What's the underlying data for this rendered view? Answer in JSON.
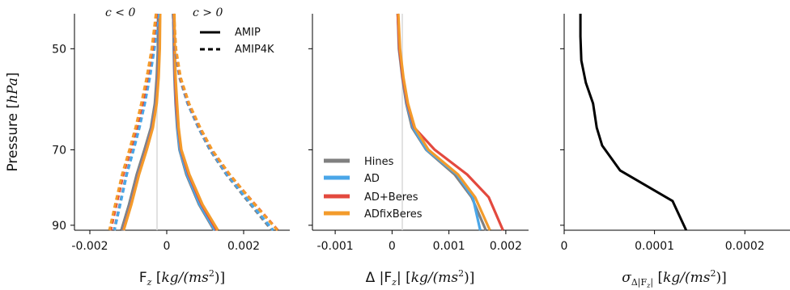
{
  "chart_data": [
    {
      "type": "line",
      "ylabel": "Pressure [hPa]",
      "xlabel": "Fz [kg/(ms2)]",
      "xlim": [
        -0.0024,
        0.0032
      ],
      "ylim": [
        91.5,
        44.5
      ],
      "yscale": "log",
      "xticks": [
        "-0.002",
        "0",
        "0.002"
      ],
      "xtick_values": [
        -0.002,
        0,
        0.002
      ],
      "yticks": [
        "50",
        "70",
        "90"
      ],
      "ytick_values": [
        50,
        70,
        90
      ],
      "annotations": [
        "c < 0",
        "c > 0"
      ],
      "legend": {
        "placement": "top-right",
        "entries": [
          {
            "label": "AMIP",
            "style": "solid"
          },
          {
            "label": "AMIP4K",
            "style": "dashed"
          }
        ]
      },
      "series": [
        {
          "scheme": "Hines",
          "pos": false,
          "dashed": false,
          "x": [
            -0.00022,
            -0.00023,
            -0.00026,
            -0.00031,
            -0.00041,
            -0.00058,
            -0.00078,
            -0.00098,
            -0.00118
          ],
          "y": [
            44.5,
            50,
            55,
            60,
            65,
            70,
            76,
            84,
            91.5
          ]
        },
        {
          "scheme": "AD",
          "pos": false,
          "dashed": false,
          "x": [
            -0.00019,
            -0.0002,
            -0.00023,
            -0.00028,
            -0.00038,
            -0.00054,
            -0.00074,
            -0.00094,
            -0.00114
          ],
          "y": [
            44.5,
            50,
            55,
            60,
            65,
            70,
            76,
            84,
            91.5
          ]
        },
        {
          "scheme": "AD+Beres",
          "pos": false,
          "dashed": false,
          "x": [
            -0.00018,
            -0.00019,
            -0.00022,
            -0.00027,
            -0.00037,
            -0.00053,
            -0.00073,
            -0.00093,
            -0.00113
          ],
          "y": [
            44.5,
            50,
            55,
            60,
            65,
            70,
            76,
            84,
            91.5
          ]
        },
        {
          "scheme": "ADfixBeres",
          "pos": false,
          "dashed": false,
          "x": [
            -0.00017,
            -0.00018,
            -0.00021,
            -0.00026,
            -0.00036,
            -0.00052,
            -0.00072,
            -0.00092,
            -0.00112
          ],
          "y": [
            44.5,
            50,
            55,
            60,
            65,
            70,
            76,
            84,
            91.5
          ]
        },
        {
          "scheme": "Hines",
          "pos": true,
          "dashed": false,
          "x": [
            0.00017,
            0.00018,
            0.0002,
            0.00023,
            0.00027,
            0.00033,
            0.00051,
            0.00084,
            0.00123
          ],
          "y": [
            44.5,
            50,
            55,
            60,
            65,
            70,
            76,
            84,
            91.5
          ]
        },
        {
          "scheme": "AD",
          "pos": true,
          "dashed": false,
          "x": [
            0.00018,
            0.00019,
            0.00021,
            0.00024,
            0.00028,
            0.00034,
            0.00053,
            0.00086,
            0.00125
          ],
          "y": [
            44.5,
            50,
            55,
            60,
            65,
            70,
            76,
            84,
            91.5
          ]
        },
        {
          "scheme": "AD+Beres",
          "pos": true,
          "dashed": false,
          "x": [
            0.00019,
            0.0002,
            0.00022,
            0.00025,
            0.0003,
            0.00037,
            0.00057,
            0.00091,
            0.0013
          ],
          "y": [
            44.5,
            50,
            55,
            60,
            65,
            70,
            76,
            84,
            91.5
          ]
        },
        {
          "scheme": "ADfixBeres",
          "pos": true,
          "dashed": false,
          "x": [
            0.0002,
            0.00021,
            0.00023,
            0.00027,
            0.00031,
            0.00038,
            0.00059,
            0.00093,
            0.00133
          ],
          "y": [
            44.5,
            50,
            55,
            60,
            65,
            70,
            76,
            84,
            91.5
          ]
        },
        {
          "scheme": "Hines",
          "pos": false,
          "dashed": true,
          "x": [
            -0.00024,
            -0.00034,
            -0.00046,
            -0.00058,
            -0.00072,
            -0.00087,
            -0.00105,
            -0.00122,
            -0.00137
          ],
          "y": [
            44.5,
            50,
            55,
            60,
            65,
            70,
            76,
            84,
            91.5
          ]
        },
        {
          "scheme": "AD",
          "pos": false,
          "dashed": true,
          "x": [
            -0.00022,
            -0.00032,
            -0.00044,
            -0.00057,
            -0.00071,
            -0.00086,
            -0.00104,
            -0.00121,
            -0.00136
          ],
          "y": [
            44.5,
            50,
            55,
            60,
            65,
            70,
            76,
            84,
            91.5
          ]
        },
        {
          "scheme": "AD+Beres",
          "pos": false,
          "dashed": true,
          "x": [
            -0.00026,
            -0.00037,
            -0.0005,
            -0.00063,
            -0.00078,
            -0.00094,
            -0.00113,
            -0.00131,
            -0.00146
          ],
          "y": [
            44.5,
            50,
            55,
            60,
            65,
            70,
            76,
            84,
            91.5
          ]
        },
        {
          "scheme": "ADfixBeres",
          "pos": false,
          "dashed": true,
          "x": [
            -0.00028,
            -0.00039,
            -0.00052,
            -0.00066,
            -0.00081,
            -0.00097,
            -0.00116,
            -0.00134,
            -0.00149
          ],
          "y": [
            44.5,
            50,
            55,
            60,
            65,
            70,
            76,
            84,
            91.5
          ]
        },
        {
          "scheme": "Hines",
          "pos": true,
          "dashed": true,
          "x": [
            0.00016,
            0.00021,
            0.00033,
            0.00054,
            0.00082,
            0.00112,
            0.00155,
            0.00218,
            0.00273
          ],
          "y": [
            44.5,
            50,
            55,
            60,
            65,
            70,
            76,
            84,
            91.5
          ]
        },
        {
          "scheme": "AD",
          "pos": true,
          "dashed": true,
          "x": [
            0.00017,
            0.00022,
            0.00034,
            0.00055,
            0.00083,
            0.00114,
            0.00157,
            0.00221,
            0.00277
          ],
          "y": [
            44.5,
            50,
            55,
            60,
            65,
            70,
            76,
            84,
            91.5
          ]
        },
        {
          "scheme": "AD+Beres",
          "pos": true,
          "dashed": true,
          "x": [
            0.00018,
            0.00023,
            0.00035,
            0.00057,
            0.00086,
            0.00117,
            0.00163,
            0.0023,
            0.00289
          ],
          "y": [
            44.5,
            50,
            55,
            60,
            65,
            70,
            76,
            84,
            91.5
          ]
        },
        {
          "scheme": "ADfixBeres",
          "pos": true,
          "dashed": true,
          "x": [
            0.00019,
            0.00024,
            0.00036,
            0.00058,
            0.00087,
            0.00118,
            0.00164,
            0.00229,
            0.00288
          ],
          "y": [
            44.5,
            50,
            55,
            60,
            65,
            70,
            76,
            84,
            91.5
          ]
        }
      ]
    },
    {
      "type": "line",
      "xlabel": "Δ |Fz| [kg/(ms2)]",
      "xlim": [
        -0.0014,
        0.0024
      ],
      "ylim": [
        91.5,
        44.5
      ],
      "yscale": "log",
      "xticks": [
        "-0.001",
        "0",
        "0.001",
        "0.002"
      ],
      "xtick_values": [
        -0.001,
        0,
        0.001,
        0.002
      ],
      "legend": {
        "placement": "lower-left",
        "entries": [
          {
            "label": "Hines",
            "color": "#808080"
          },
          {
            "label": "AD",
            "color": "#4aa6e8"
          },
          {
            "label": "AD+Beres",
            "color": "#e3493e"
          },
          {
            "label": "ADfixBeres",
            "color": "#f39b2b"
          }
        ]
      },
      "series": [
        {
          "name": "Hines",
          "x": [
            0.0001,
            0.00012,
            0.00018,
            0.00025,
            0.00035,
            0.0006,
            0.0011,
            0.0014,
            0.00165
          ],
          "y": [
            44.5,
            50,
            55,
            60,
            65,
            70,
            76,
            82,
            91.5
          ]
        },
        {
          "name": "AD",
          "x": [
            0.0001,
            0.00013,
            0.00019,
            0.00026,
            0.00037,
            0.00061,
            0.00114,
            0.00142,
            0.00155
          ],
          "y": [
            44.5,
            50,
            55,
            60,
            65,
            70,
            76,
            82,
            91.5
          ]
        },
        {
          "name": "AD+Beres",
          "x": [
            0.0001,
            0.00013,
            0.00019,
            0.00027,
            0.00039,
            0.00075,
            0.00132,
            0.0017,
            0.00195
          ],
          "y": [
            44.5,
            50,
            55,
            60,
            65,
            70,
            76,
            82,
            91.5
          ]
        },
        {
          "name": "ADfixBeres",
          "x": [
            0.00011,
            0.00014,
            0.0002,
            0.00028,
            0.0004,
            0.00064,
            0.00116,
            0.00146,
            0.00172
          ],
          "y": [
            44.5,
            50,
            55,
            60,
            65,
            70,
            76,
            82,
            91.5
          ]
        }
      ]
    },
    {
      "type": "line",
      "xlabel": "σΔ|Fz| [kg/(ms2)]",
      "xlim": [
        0,
        0.00025
      ],
      "ylim": [
        91.5,
        44.5
      ],
      "yscale": "log",
      "xticks": [
        "0",
        "0.0001",
        "0.0002"
      ],
      "xtick_values": [
        0,
        0.0001,
        0.0002
      ],
      "series": [
        {
          "name": "",
          "color": "#000000",
          "x": [
            1.8e-05,
            1.8e-05,
            1.9e-05,
            2.4e-05,
            3.2e-05,
            3.6e-05,
            4.2e-05,
            6.2e-05,
            0.00012,
            0.000135
          ],
          "y": [
            44.5,
            48,
            52,
            56,
            60,
            65,
            69,
            75,
            83,
            91.5
          ]
        }
      ]
    }
  ],
  "colors": {
    "Hines": "#808080",
    "AD": "#4aa6e8",
    "AD+Beres": "#e3493e",
    "ADfixBeres": "#f39b2b"
  },
  "text": {
    "ylabel_main": "Pressure [",
    "ylabel_unit": "hPa",
    "ylabel_close": "]",
    "annot_neg": "c < 0",
    "annot_pos": "c > 0",
    "legend1_amip": "AMIP",
    "legend1_amip4k": "AMIP4K",
    "legend2_hines": "Hines",
    "legend2_ad": "AD",
    "legend2_adberes": "AD+Beres",
    "legend2_adfix": "ADfixBeres",
    "x1_pre": "F",
    "x1_sub": "z",
    "x1_unit_a": " [",
    "x1_unit_b": "kg/(ms",
    "x1_unit_c": "2",
    "x1_unit_d": ")]",
    "x2_pre": "Δ |F",
    "x2_sub": "z",
    "x2_post": "|",
    "x2_unit_a": " [",
    "x2_unit_b": "kg/(ms",
    "x2_unit_c": "2",
    "x2_unit_d": ")]",
    "x3_sigma": "σ",
    "x3_sub": "Δ|F",
    "x3_subsub": "z",
    "x3_subclose": "|",
    "x3_unit_a": " [",
    "x3_unit_b": "kg/(ms",
    "x3_unit_c": "2",
    "x3_unit_d": ")]"
  }
}
